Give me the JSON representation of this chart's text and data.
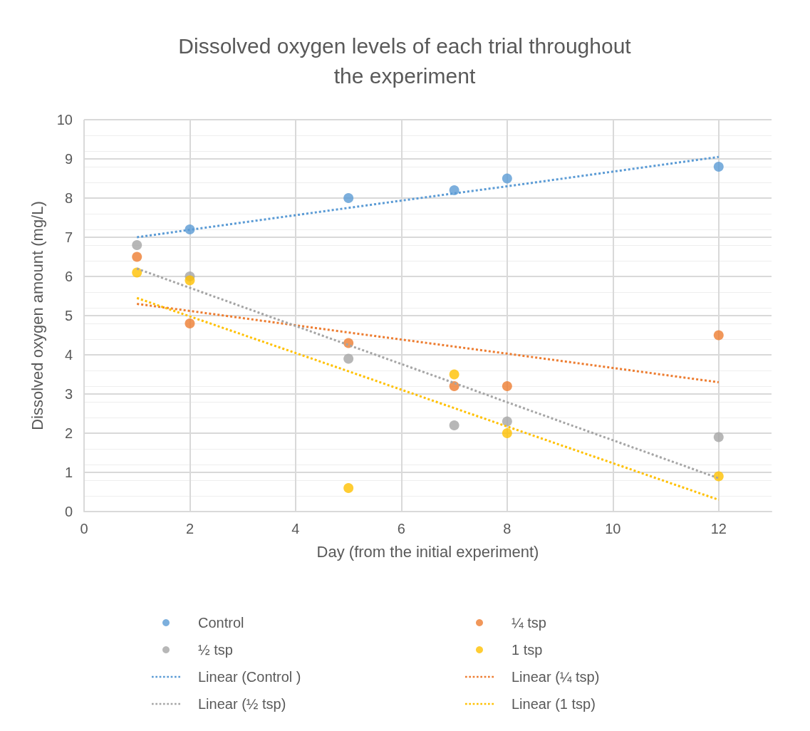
{
  "chart_data": {
    "type": "scatter",
    "title": "Dissolved oxygen levels of each trial throughout\nthe experiment",
    "xlabel": "Day (from the initial experiment)",
    "ylabel": "Dissolved oxygen amount (mg/L)",
    "x": [
      1,
      2,
      5,
      7,
      8,
      12
    ],
    "series": [
      {
        "name": "Control",
        "color": "#5b9bd5",
        "values": [
          null,
          7.2,
          8.0,
          8.2,
          8.5,
          8.8
        ]
      },
      {
        "name": "¼ tsp",
        "color": "#ed7d31",
        "values": [
          6.5,
          4.8,
          4.3,
          3.2,
          3.2,
          4.5
        ]
      },
      {
        "name": "½ tsp",
        "color": "#a5a5a5",
        "values": [
          6.8,
          6.0,
          3.9,
          2.2,
          2.3,
          1.9
        ]
      },
      {
        "name": "1 tsp",
        "color": "#ffc000",
        "values": [
          6.1,
          5.9,
          0.6,
          3.5,
          2.0,
          0.9
        ]
      },
      {
        "name": "Linear (Control )",
        "type": "line",
        "color": "#5b9bd5",
        "values": [
          7.0,
          7.19,
          7.75,
          8.12,
          8.3,
          9.05
        ],
        "line_style": "dotted",
        "marker": "none"
      },
      {
        "name": "Linear (¼ tsp)",
        "type": "line",
        "color": "#ed7d31",
        "values": [
          5.3,
          5.12,
          4.57,
          4.21,
          4.03,
          3.3
        ],
        "line_style": "dotted",
        "marker": "none"
      },
      {
        "name": "Linear (½ tsp)",
        "type": "line",
        "color": "#a5a5a5",
        "values": [
          6.2,
          5.71,
          4.25,
          3.28,
          2.79,
          0.85
        ],
        "line_style": "dotted",
        "marker": "none"
      },
      {
        "name": "Linear (1 tsp)",
        "type": "line",
        "color": "#ffc000",
        "values": [
          5.45,
          4.98,
          3.58,
          2.64,
          2.17,
          0.3
        ],
        "line_style": "dotted",
        "marker": "none"
      }
    ],
    "xlim": [
      0,
      13
    ],
    "xticks": [
      0,
      2,
      4,
      6,
      8,
      10,
      12
    ],
    "ylim": [
      0,
      10
    ],
    "yticks": [
      0,
      1,
      2,
      3,
      4,
      5,
      6,
      7,
      8,
      9,
      10
    ],
    "grid": true,
    "legend": "bottom",
    "marker": "circle"
  }
}
